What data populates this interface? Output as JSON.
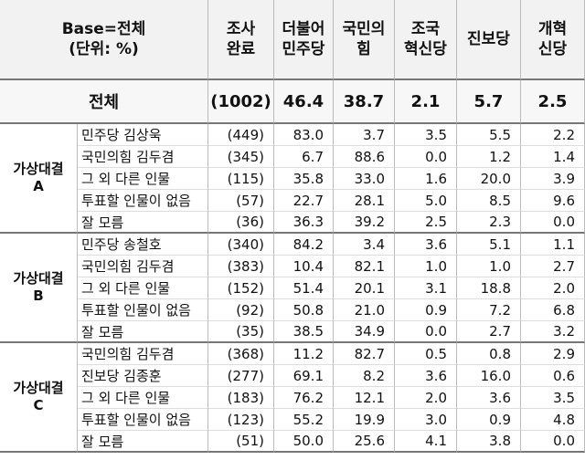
{
  "header": {
    "label_lines": [
      "Base=전체",
      "(단위: %)"
    ],
    "columns": [
      [
        "조사",
        "완료"
      ],
      [
        "더불어",
        "민주당"
      ],
      [
        "국민의",
        "힘"
      ],
      [
        "조국",
        "혁신당"
      ],
      [
        "진보당"
      ],
      [
        "개혁",
        "신당"
      ]
    ]
  },
  "total": {
    "label": "전체",
    "cells": [
      "(1002)",
      "46.4",
      "38.7",
      "2.1",
      "5.7",
      "2.5"
    ]
  },
  "groups": [
    {
      "label_lines": [
        "가상대결",
        "A"
      ],
      "rows": [
        [
          "민주당 김상욱",
          "(449)",
          "83.0",
          "3.7",
          "3.5",
          "5.5",
          "2.2"
        ],
        [
          "국민의힘 김두겸",
          "(345)",
          "6.7",
          "88.6",
          "0.0",
          "1.2",
          "1.4"
        ],
        [
          "그 외 다른 인물",
          "(115)",
          "35.8",
          "33.0",
          "1.6",
          "20.0",
          "3.9"
        ],
        [
          "투표할 인물이 없음",
          "(57)",
          "22.7",
          "28.1",
          "5.0",
          "8.5",
          "9.6"
        ],
        [
          "잘 모름",
          "(36)",
          "36.3",
          "39.2",
          "2.5",
          "2.3",
          "0.0"
        ]
      ]
    },
    {
      "label_lines": [
        "가상대결",
        "B"
      ],
      "rows": [
        [
          "민주당 송철호",
          "(340)",
          "84.2",
          "3.4",
          "3.6",
          "5.1",
          "1.1"
        ],
        [
          "국민의힘 김두겸",
          "(383)",
          "10.4",
          "82.1",
          "1.0",
          "1.0",
          "2.7"
        ],
        [
          "그 외 다른 인물",
          "(152)",
          "51.4",
          "20.1",
          "3.1",
          "18.8",
          "2.0"
        ],
        [
          "투표할 인물이 없음",
          "(92)",
          "50.8",
          "21.0",
          "0.9",
          "7.2",
          "6.8"
        ],
        [
          "잘 모름",
          "(35)",
          "38.5",
          "34.9",
          "0.0",
          "2.7",
          "3.2"
        ]
      ]
    },
    {
      "label_lines": [
        "가상대결",
        "C"
      ],
      "rows": [
        [
          "국민의힘 김두겸",
          "(368)",
          "11.2",
          "82.7",
          "0.5",
          "0.8",
          "2.9"
        ],
        [
          "진보당 김종훈",
          "(277)",
          "69.1",
          "8.2",
          "3.6",
          "16.0",
          "0.6"
        ],
        [
          "그 외 다른 인물",
          "(183)",
          "76.2",
          "12.1",
          "2.0",
          "3.6",
          "3.5"
        ],
        [
          "투표할 인물이 없음",
          "(123)",
          "55.2",
          "19.9",
          "3.0",
          "0.9",
          "4.8"
        ],
        [
          "잘 모름",
          "(51)",
          "50.0",
          "25.6",
          "4.1",
          "3.8",
          "0.0"
        ]
      ]
    }
  ]
}
